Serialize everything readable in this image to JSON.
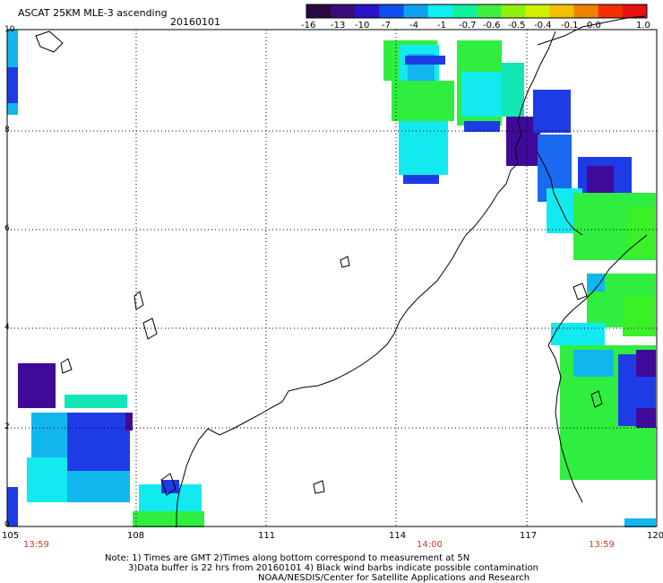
{
  "header": {
    "title": "ASCAT 25KM MLE-3 ascending",
    "date": "20160101"
  },
  "colorbar": {
    "ticks": [
      "-16",
      "-13",
      "-10",
      "-7",
      "-4",
      "-1",
      "-0.7",
      "-0.6",
      "-0.5",
      "-0.4",
      "-0.1",
      "0.0",
      "1.0"
    ],
    "colors": [
      "#2a0a3e",
      "#3c0a7a",
      "#2a14c8",
      "#1050f0",
      "#10a0f0",
      "#10f0f0",
      "#10f0a0",
      "#40f040",
      "#90f010",
      "#d0f000",
      "#f0c000",
      "#f08000",
      "#f03000",
      "#e81010"
    ]
  },
  "map": {
    "lat_ticks": [
      "10",
      "8",
      "6",
      "4",
      "2",
      "0"
    ],
    "lon_ticks": [
      "105",
      "108",
      "111",
      "114",
      "117",
      "120"
    ],
    "time_labels": [
      "13:59",
      "14:00",
      "13:59"
    ],
    "swath_colors": {
      "violet": "#3f0a9a",
      "blue": "#1e3ce6",
      "mid_blue": "#1a6af0",
      "sky": "#12b6ee",
      "cyan": "#12eaf0",
      "aqua": "#12e6b4",
      "green": "#30ee40",
      "lime": "#3cf028"
    }
  },
  "footer": {
    "note_line1": "Note: 1) Times are GMT 2)Times along bottom correspond to measurement at 5N",
    "note_line2": "3)Data buffer is 22 hrs from 20160101 4) Black wind barbs indicate possible contamination",
    "credit": "NOAA/NESDIS/Center for Satellite Applications and Research"
  }
}
